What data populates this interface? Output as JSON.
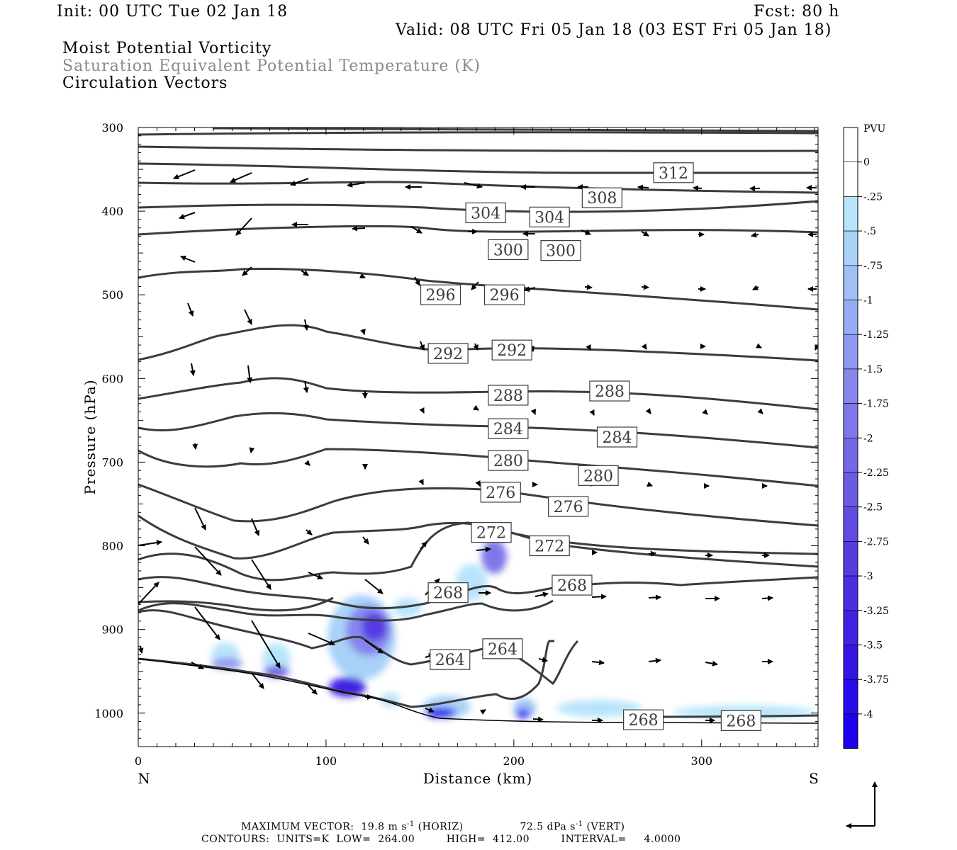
{
  "header": {
    "init": "Init: 00 UTC Tue 02 Jan 18",
    "fcst": "Fcst:   80 h",
    "valid": "Valid: 08 UTC Fri 05 Jan 18 (03 EST Fri 05 Jan 18)",
    "field1": "Moist Potential Vorticity",
    "field2": "Saturation Equivalent Potential Temperature (K)",
    "field3": "Circulation Vectors"
  },
  "footer": {
    "max_vector_label": "MAXIMUM VECTOR:",
    "horiz_value": "19.8 m s",
    "horiz_exp": "-1",
    "horiz_tag": "(HORIZ)",
    "vert_value": "72.5 dPa s",
    "vert_exp": "-1",
    "vert_tag": "(VERT)",
    "contours": "CONTOURS:  UNITS=K  LOW=  264.00         HIGH=  412.00         INTERVAL=     4.0000"
  },
  "colors": {
    "contour": "#3c3c3c",
    "frame": "#000000",
    "ground": "#000000"
  },
  "chart_data": {
    "type": "contour",
    "xlabel": "Distance (km)",
    "ylabel": "Pressure (hPa)",
    "x_left_label": "N",
    "x_right_label": "S",
    "xlim": [
      0,
      362
    ],
    "ylim": [
      1040,
      300
    ],
    "x_ticks": [
      0,
      100,
      200,
      300
    ],
    "y_ticks": [
      300,
      400,
      500,
      600,
      700,
      800,
      900,
      1000
    ],
    "contour_labels": [
      {
        "value": "312",
        "x": 285,
        "p": 354
      },
      {
        "value": "308",
        "x": 247,
        "p": 384
      },
      {
        "value": "304",
        "x": 185,
        "p": 402
      },
      {
        "value": "304",
        "x": 219,
        "p": 407
      },
      {
        "value": "300",
        "x": 197,
        "p": 446
      },
      {
        "value": "300",
        "x": 225,
        "p": 447
      },
      {
        "value": "296",
        "x": 161,
        "p": 500
      },
      {
        "value": "296",
        "x": 195,
        "p": 500
      },
      {
        "value": "292",
        "x": 165,
        "p": 570
      },
      {
        "value": "292",
        "x": 199,
        "p": 566
      },
      {
        "value": "288",
        "x": 197,
        "p": 620
      },
      {
        "value": "288",
        "x": 251,
        "p": 615
      },
      {
        "value": "284",
        "x": 197,
        "p": 660
      },
      {
        "value": "284",
        "x": 255,
        "p": 670
      },
      {
        "value": "280",
        "x": 197,
        "p": 698
      },
      {
        "value": "280",
        "x": 245,
        "p": 716
      },
      {
        "value": "276",
        "x": 193,
        "p": 736
      },
      {
        "value": "276",
        "x": 229,
        "p": 753
      },
      {
        "value": "272",
        "x": 188,
        "p": 784
      },
      {
        "value": "272",
        "x": 219,
        "p": 800
      },
      {
        "value": "268",
        "x": 165,
        "p": 856
      },
      {
        "value": "268",
        "x": 231,
        "p": 847
      },
      {
        "value": "264",
        "x": 166,
        "p": 936
      },
      {
        "value": "264",
        "x": 194,
        "p": 923
      },
      {
        "value": "268",
        "x": 269,
        "p": 1008
      },
      {
        "value": "268",
        "x": 321,
        "p": 1009
      }
    ],
    "colorbar": {
      "unit": "PVU",
      "labels": [
        "0",
        "-.25",
        "-.5",
        "-.75",
        "-1",
        "-1.25",
        "-1.5",
        "-1.75",
        "-2",
        "-2.25",
        "-2.5",
        "-2.75",
        "-3",
        "-3.25",
        "-3.5",
        "-3.75",
        "-4"
      ],
      "colors": [
        "#ffffff",
        "#ffffff",
        "#b8e4fb",
        "#a8d2f8",
        "#9fbff5",
        "#97acf2",
        "#8f98ef",
        "#8786ec",
        "#7f77e9",
        "#7468e6",
        "#6a5ae4",
        "#5f4be2",
        "#543ce1",
        "#4a2fe1",
        "#3f22e2",
        "#3316e4",
        "#270beb",
        "#1c00ee"
      ]
    }
  }
}
